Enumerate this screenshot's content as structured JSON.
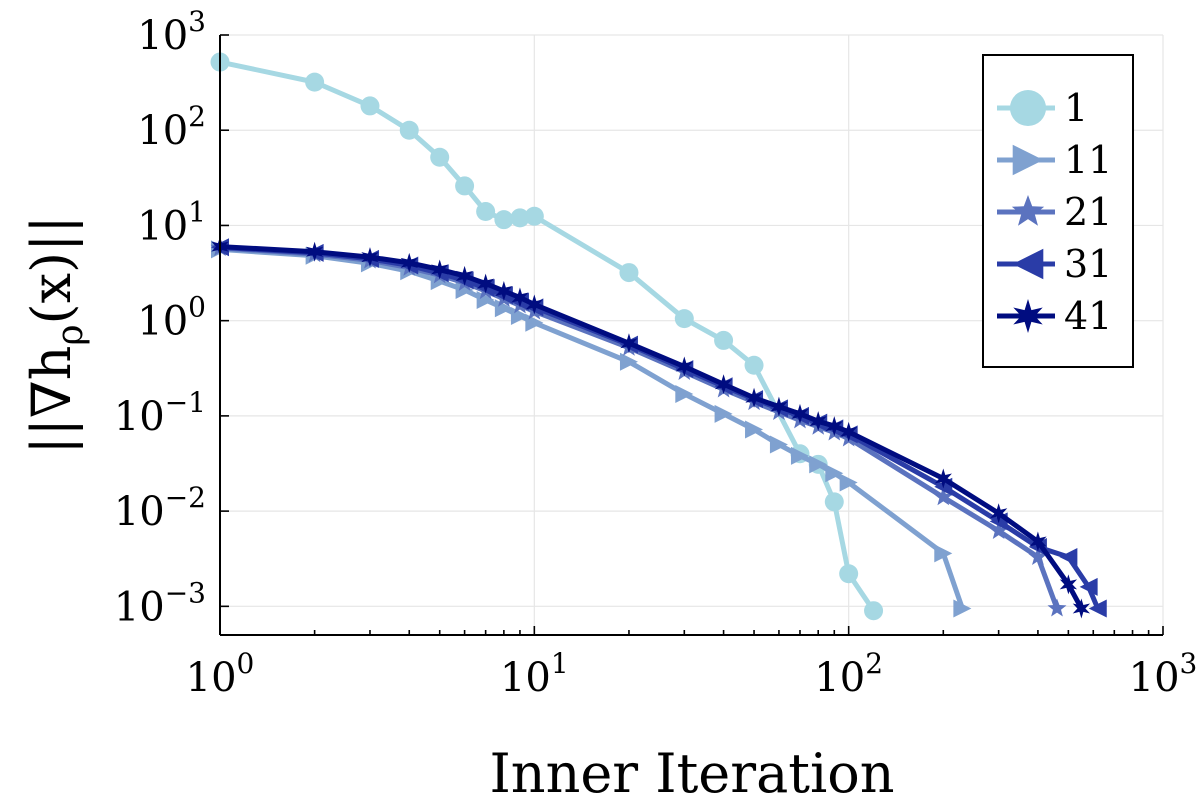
{
  "chart_data": {
    "type": "line",
    "xscale": "log",
    "yscale": "log",
    "xlim": [
      1,
      1000
    ],
    "ylim": [
      0.0005,
      1000
    ],
    "xlabel": "Inner Iteration",
    "ylabel": {
      "pre": "||∇h",
      "sub": "ρ",
      "post": "(x)||"
    },
    "grid": true,
    "legend_position": "top-right",
    "x_ticks": [
      {
        "value": 1,
        "base": "10",
        "exp": "0"
      },
      {
        "value": 10,
        "base": "10",
        "exp": "1"
      },
      {
        "value": 100,
        "base": "10",
        "exp": "2"
      },
      {
        "value": 1000,
        "base": "10",
        "exp": "3"
      }
    ],
    "y_ticks": [
      {
        "value": 0.001,
        "base": "10",
        "exp": "−3"
      },
      {
        "value": 0.01,
        "base": "10",
        "exp": "−2"
      },
      {
        "value": 0.1,
        "base": "10",
        "exp": "−1"
      },
      {
        "value": 1,
        "base": "10",
        "exp": "0"
      },
      {
        "value": 10,
        "base": "10",
        "exp": "1"
      },
      {
        "value": 100,
        "base": "10",
        "exp": "2"
      },
      {
        "value": 1000,
        "base": "10",
        "exp": "3"
      }
    ],
    "series": [
      {
        "name": "1",
        "marker": "circle",
        "color": "#a6d8e3",
        "x": [
          1,
          2,
          3,
          4,
          5,
          6,
          7,
          8,
          9,
          10,
          20,
          30,
          40,
          50,
          70,
          80,
          90,
          100,
          120
        ],
        "y": [
          520,
          320,
          180,
          100,
          52,
          26,
          14,
          11.5,
          12,
          12.5,
          3.2,
          1.05,
          0.62,
          0.34,
          0.04,
          0.031,
          0.0125,
          0.0022,
          0.0009
        ]
      },
      {
        "name": "11",
        "marker": "triangle-right",
        "color": "#7fa1d0",
        "x": [
          1,
          2,
          3,
          4,
          5,
          6,
          7,
          8,
          9,
          10,
          20,
          30,
          40,
          50,
          60,
          70,
          80,
          90,
          100,
          200,
          230
        ],
        "y": [
          5.6,
          4.8,
          4.0,
          3.3,
          2.6,
          2.1,
          1.65,
          1.35,
          1.12,
          0.95,
          0.37,
          0.17,
          0.105,
          0.072,
          0.05,
          0.038,
          0.031,
          0.025,
          0.02,
          0.0036,
          0.00095
        ]
      },
      {
        "name": "21",
        "marker": "star5",
        "color": "#5b73bf",
        "x": [
          1,
          2,
          3,
          4,
          5,
          6,
          7,
          8,
          9,
          10,
          20,
          30,
          40,
          50,
          60,
          70,
          80,
          90,
          100,
          200,
          300,
          400,
          460
        ],
        "y": [
          5.8,
          5.0,
          4.3,
          3.6,
          3.0,
          2.5,
          2.05,
          1.7,
          1.45,
          1.25,
          0.52,
          0.29,
          0.19,
          0.14,
          0.11,
          0.09,
          0.077,
          0.067,
          0.058,
          0.014,
          0.0062,
          0.0033,
          0.00095
        ]
      },
      {
        "name": "31",
        "marker": "triangle-left",
        "color": "#2a3ca7",
        "x": [
          1,
          2,
          3,
          4,
          5,
          6,
          7,
          8,
          9,
          10,
          20,
          30,
          40,
          50,
          60,
          70,
          80,
          90,
          100,
          200,
          300,
          400,
          500,
          580,
          620
        ],
        "y": [
          5.9,
          5.15,
          4.45,
          3.8,
          3.15,
          2.65,
          2.2,
          1.85,
          1.58,
          1.38,
          0.56,
          0.31,
          0.205,
          0.15,
          0.12,
          0.1,
          0.085,
          0.074,
          0.064,
          0.018,
          0.0078,
          0.0042,
          0.0033,
          0.0016,
          0.00095
        ]
      },
      {
        "name": "41",
        "marker": "star6",
        "color": "#000c80",
        "x": [
          1,
          2,
          3,
          4,
          5,
          6,
          7,
          8,
          9,
          10,
          20,
          30,
          40,
          50,
          60,
          70,
          80,
          90,
          100,
          200,
          300,
          400,
          500,
          550
        ],
        "y": [
          6.0,
          5.3,
          4.65,
          4.05,
          3.45,
          2.95,
          2.45,
          2.05,
          1.75,
          1.48,
          0.58,
          0.33,
          0.215,
          0.155,
          0.125,
          0.105,
          0.088,
          0.078,
          0.068,
          0.022,
          0.0095,
          0.0048,
          0.0017,
          0.00095
        ]
      }
    ]
  }
}
